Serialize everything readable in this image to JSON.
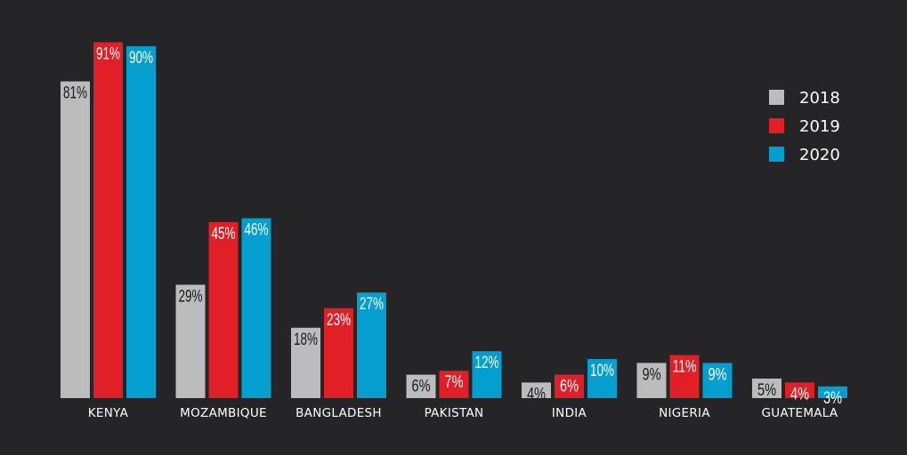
{
  "chart_data": {
    "type": "bar",
    "title": "",
    "xlabel": "",
    "ylabel": "",
    "ylim": [
      0,
      100
    ],
    "legend_position": "top-right",
    "value_suffix": "%",
    "categories": [
      "KENYA",
      "MOZAMBIQUE",
      "BANGLADESH",
      "PAKISTAN",
      "INDIA",
      "NIGERIA",
      "GUATEMALA"
    ],
    "series": [
      {
        "name": "2018",
        "color": "#bcbcbc",
        "label_color": "#1a1a1a",
        "values": [
          81,
          29,
          18,
          6,
          4,
          9,
          5
        ]
      },
      {
        "name": "2019",
        "color": "#e11f26",
        "label_color": "#ffffff",
        "values": [
          91,
          45,
          23,
          7,
          6,
          11,
          4
        ]
      },
      {
        "name": "2020",
        "color": "#049fcf",
        "label_color": "#ffffff",
        "values": [
          90,
          46,
          27,
          12,
          10,
          9,
          3
        ]
      }
    ]
  }
}
